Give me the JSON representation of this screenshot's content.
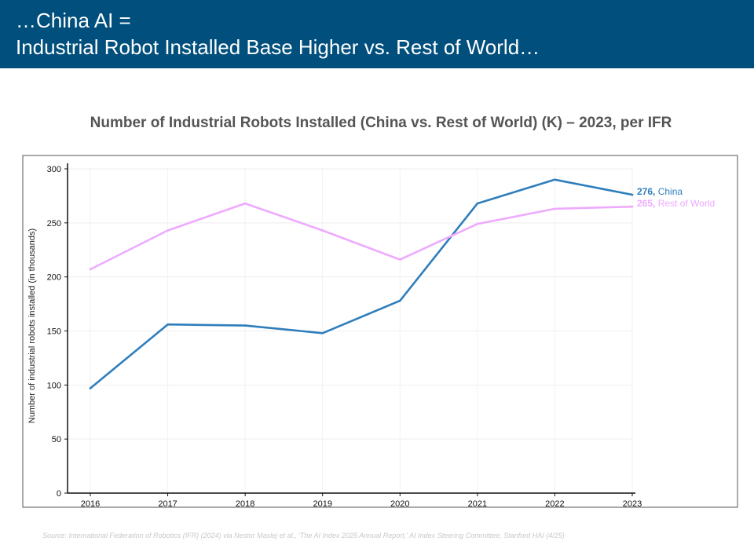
{
  "header": {
    "line1": "…China AI =",
    "line2": "Industrial Robot Installed Base Higher vs. Rest of World…"
  },
  "source": "Source: International Federation of Robotics (IFR) (2024) via Nestor Maslej et al., 'The AI Index 2025 Annual Report,' AI Index Steering Committee, Stanford HAI (4/25)",
  "chart_data": {
    "type": "line",
    "title": "Number of Industrial Robots Installed (China vs. Rest of World) (K) – 2023, per IFR",
    "xlabel": "",
    "ylabel": "Number of industrial robots installed (in thousands)",
    "x": [
      2016,
      2017,
      2018,
      2019,
      2020,
      2021,
      2022,
      2023
    ],
    "ylim": [
      0,
      300
    ],
    "yticks": [
      0,
      50,
      100,
      150,
      200,
      250,
      300
    ],
    "grid": true,
    "series": [
      {
        "name": "China",
        "color": "#2f7ebc",
        "values": [
          97,
          156,
          155,
          148,
          178,
          268,
          290,
          276
        ],
        "end_label_value": "276,",
        "end_label_name": "China"
      },
      {
        "name": "Rest of World",
        "color": "#eeaaff",
        "values": [
          207,
          243,
          268,
          243,
          216,
          249,
          263,
          265
        ],
        "end_label_value": "265,",
        "end_label_name": "Rest of World"
      }
    ]
  }
}
